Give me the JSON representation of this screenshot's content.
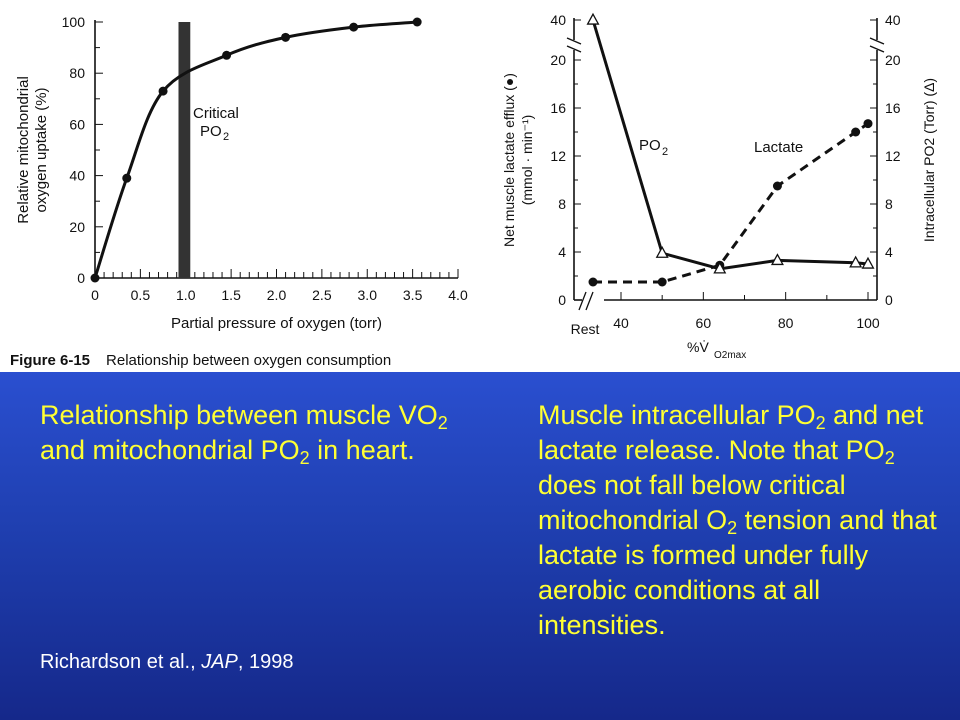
{
  "chart_data": [
    {
      "type": "line",
      "xlabel": "Partial pressure of oxygen (torr)",
      "ylabel_line1": "Relative mitochondrial",
      "ylabel_line2": "oxygen uptake (%)",
      "xlim": [
        0,
        4.0
      ],
      "ylim": [
        0,
        100
      ],
      "xticks": [
        "0",
        "0.5",
        "1.0",
        "1.5",
        "2.0",
        "2.5",
        "3.0",
        "3.5",
        "4.0"
      ],
      "yticks": [
        "0",
        "20",
        "40",
        "60",
        "80",
        "100"
      ],
      "series": [
        {
          "x": [
            0,
            0.35,
            0.75,
            1.45,
            2.1,
            2.85,
            3.55
          ],
          "y": [
            0,
            39,
            73,
            87,
            94,
            98,
            100
          ]
        }
      ],
      "band": {
        "x": [
          0.92,
          1.05
        ]
      },
      "annotation_line1": "Critical",
      "annotation_line2": "PO",
      "annotation_sub": "2",
      "grid": false
    },
    {
      "type": "line",
      "xlabel": "%V̇",
      "xlabel_sub": "O2max",
      "ylabel_left_line1": "Net muscle lactate efflux (●)",
      "ylabel_left_line2": "(mmol · min⁻¹)",
      "ylabel_right": "Intracellular PO2 (Torr) (Δ)",
      "x_categories": [
        "Rest",
        "40",
        "60",
        "80",
        "100"
      ],
      "xlim": [
        30,
        100
      ],
      "yticks": [
        "0",
        "4",
        "8",
        "12",
        "16",
        "20",
        "40"
      ],
      "series": [
        {
          "name": "Lactate",
          "style": "dashed",
          "marker": "circle",
          "x": [
            "Rest",
            50,
            64,
            78,
            97,
            100
          ],
          "y": [
            1.5,
            1.5,
            2.9,
            9.5,
            14.0,
            14.7
          ]
        },
        {
          "name": "PO2",
          "name_main": "PO",
          "name_sub": "2",
          "style": "solid",
          "marker": "triangle",
          "x": [
            "Rest",
            50,
            64,
            78,
            97,
            100
          ],
          "y": [
            40,
            3.9,
            2.6,
            3.3,
            3.1,
            3.0
          ]
        }
      ],
      "grid": false
    }
  ],
  "figure_caption": {
    "label": "Figure 6-15",
    "text": "Relationship between oxygen consumption"
  },
  "captions": {
    "left": {
      "p1": "Relationship between muscle VO",
      "s1": "2",
      "p2": " and mitochondrial PO",
      "s2": "2",
      "p3": " in heart."
    },
    "right": {
      "p1": "Muscle intracellular PO",
      "s1": "2",
      "p2": " and net lactate release.  Note that PO",
      "s2": "2",
      "p3": " does not fall below critical mitochondrial O",
      "s3": "2",
      "p4": " tension and that lactate is formed under fully aerobic conditions at all intensities."
    }
  },
  "citation": {
    "authors": "Richardson et al., ",
    "journal": "JAP",
    "year": ", 1998"
  },
  "colors": {
    "caption_text": "#ffff33",
    "citation_text": "#ffffff",
    "panel_top": "#2a4fd0",
    "panel_bottom": "#15288a",
    "band": "#333333"
  }
}
